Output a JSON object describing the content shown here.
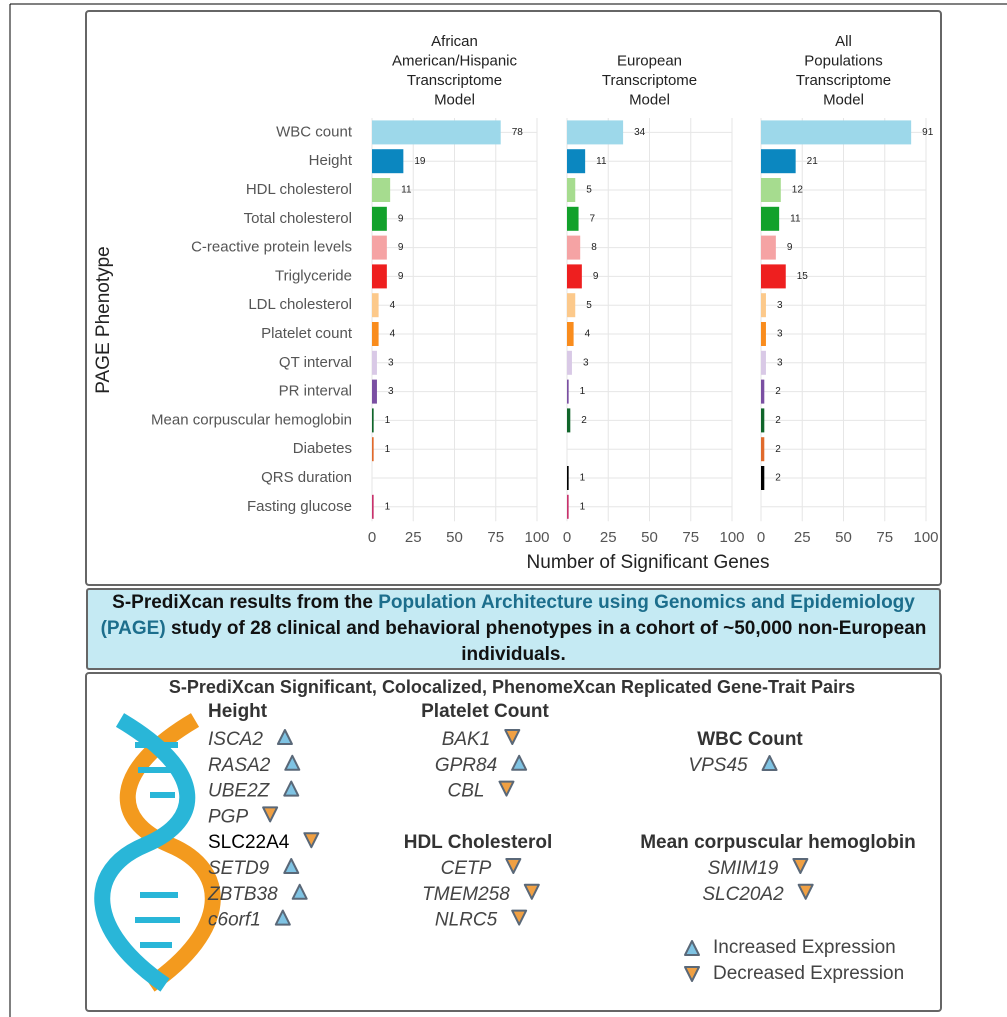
{
  "chart_data": {
    "type": "bar",
    "orientation": "horizontal",
    "y_label": "PAGE Phenotype",
    "x_label": "Number of Significant Genes",
    "categories": [
      "WBC count",
      "Height",
      "HDL cholesterol",
      "Total cholesterol",
      "C-reactive protein levels",
      "Triglyceride",
      "LDL cholesterol",
      "Platelet count",
      "QT interval",
      "PR interval",
      "Mean corpuscular hemoglobin",
      "Diabetes",
      "QRS duration",
      "Fasting glucose"
    ],
    "colors": [
      "#9dd8ea",
      "#0b87c0",
      "#a6dc8f",
      "#12a12b",
      "#f5a3a4",
      "#ee1f1f",
      "#fcc98b",
      "#f98c1d",
      "#d9c9e6",
      "#7a4fa2",
      "#10652a",
      "#e06a2c",
      "#000000",
      "#c8326c"
    ],
    "panels": [
      {
        "title": [
          "African",
          "American/Hispanic",
          "Transcriptome",
          "Model"
        ],
        "values": [
          78,
          19,
          11,
          9,
          9,
          9,
          4,
          4,
          3,
          3,
          1,
          1,
          null,
          1
        ]
      },
      {
        "title": [
          "European",
          "Transcriptome",
          "Model"
        ],
        "values": [
          34,
          11,
          5,
          7,
          8,
          9,
          5,
          4,
          3,
          1,
          2,
          null,
          1,
          1
        ]
      },
      {
        "title": [
          "All",
          "Populations",
          "Transcriptome",
          "Model"
        ],
        "values": [
          91,
          21,
          12,
          11,
          9,
          15,
          3,
          3,
          3,
          2,
          2,
          2,
          2,
          null
        ]
      }
    ],
    "xlim": [
      0,
      100
    ],
    "xticks": [
      0,
      25,
      50,
      75,
      100
    ],
    "grid": true
  },
  "banner": {
    "parts": [
      "S-PrediXcan results from the ",
      "Population Architecture using Genomics and Epidemiology (PAGE)",
      " study of 28 clinical and behavioral phenotypes in a cohort of ~50,000 non-European individuals."
    ]
  },
  "gene_panel": {
    "title": "S-PrediXcan Significant, Colocalized, PhenomeXcan Replicated Gene-Trait Pairs",
    "groups": [
      {
        "trait": "Height",
        "genes": [
          {
            "name": "ISCA2",
            "direction": "up"
          },
          {
            "name": "RASA2",
            "direction": "up"
          },
          {
            "name": "UBE2Z",
            "direction": "up"
          },
          {
            "name": "PGP",
            "direction": "down"
          },
          {
            "name": "SLC22A4",
            "direction": "down"
          },
          {
            "name": "SETD9",
            "direction": "up"
          },
          {
            "name": "ZBTB38",
            "direction": "up"
          },
          {
            "name": "c6orf1",
            "direction": "up"
          }
        ]
      },
      {
        "trait": "Platelet Count",
        "genes": [
          {
            "name": "BAK1",
            "direction": "down"
          },
          {
            "name": "GPR84",
            "direction": "up"
          },
          {
            "name": "CBL",
            "direction": "down"
          }
        ]
      },
      {
        "trait": "WBC Count",
        "genes": [
          {
            "name": "VPS45",
            "direction": "up"
          }
        ]
      },
      {
        "trait": "HDL Cholesterol",
        "genes": [
          {
            "name": "CETP",
            "direction": "down"
          },
          {
            "name": "TMEM258",
            "direction": "down"
          },
          {
            "name": "NLRC5",
            "direction": "down"
          }
        ]
      },
      {
        "trait": "Mean corpuscular hemoglobin",
        "genes": [
          {
            "name": "SMIM19",
            "direction": "down"
          },
          {
            "name": "SLC20A2",
            "direction": "down"
          }
        ]
      }
    ],
    "legend": [
      {
        "direction": "up",
        "label": "Increased Expression"
      },
      {
        "direction": "down",
        "label": "Decreased Expression"
      }
    ]
  }
}
